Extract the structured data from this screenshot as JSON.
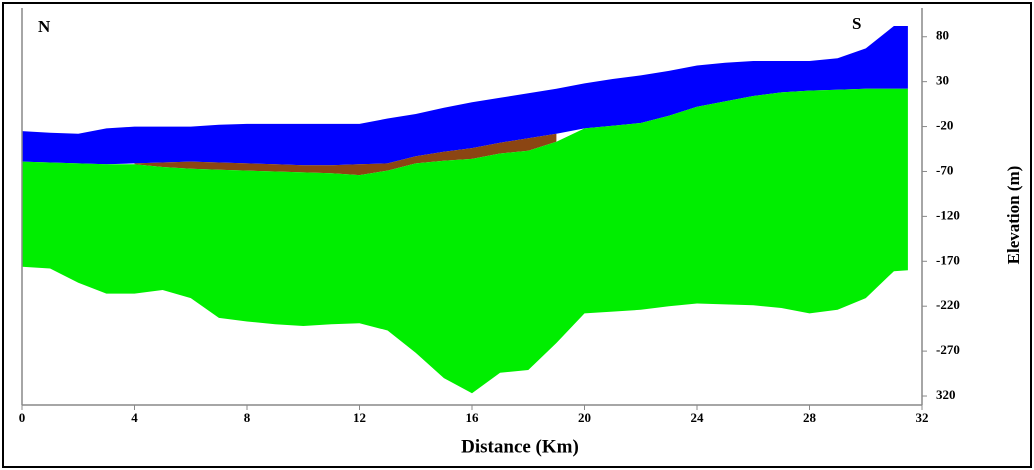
{
  "chart_data": {
    "type": "profile",
    "annotations": [
      "N",
      "S"
    ],
    "x_label": "Distance (Km)",
    "y_label": "Elevation (m)",
    "x": [
      0,
      1,
      2,
      3,
      4,
      5,
      6,
      7,
      8,
      9,
      10,
      11,
      12,
      13,
      14,
      15,
      16,
      17,
      18,
      19,
      20,
      21,
      22,
      23,
      24,
      25,
      26,
      27,
      28,
      29,
      30,
      31,
      31.5
    ],
    "layers": [
      {
        "color": "#0000ff",
        "top": [
          -25,
          -27,
          -28,
          -22,
          -20,
          -20,
          -20,
          -18,
          -17,
          -17,
          -17,
          -17,
          -17,
          -11,
          -6,
          1,
          7,
          12,
          17,
          22,
          28,
          33,
          37,
          42,
          48,
          51,
          53,
          53,
          53,
          56,
          67,
          92,
          92
        ],
        "bottom": [
          -59,
          -60,
          -61,
          -62,
          -61,
          -60,
          -59,
          -60,
          -61,
          -62,
          -63,
          -63,
          -62,
          -61,
          -53,
          -48,
          -44,
          -38,
          -33,
          -28,
          -22,
          -19,
          -16,
          -8,
          2,
          8,
          14,
          18,
          20,
          21,
          22,
          22,
          22
        ]
      },
      {
        "color": "#8b4513",
        "top": [
          null,
          null,
          null,
          null,
          -61,
          -60,
          -59,
          -60,
          -61,
          -62,
          -63,
          -63,
          -62,
          -61,
          -53,
          -48,
          -44,
          -38,
          -33,
          -28,
          null,
          null,
          null,
          null,
          null,
          null,
          null,
          null,
          null,
          null,
          null,
          null,
          null
        ],
        "bottom": [
          null,
          null,
          null,
          null,
          -62,
          -65,
          -67,
          -68,
          -69,
          -70,
          -71,
          -72,
          -74,
          -69,
          -61,
          -58,
          -56,
          -50,
          -47,
          -37,
          null,
          null,
          null,
          null,
          null,
          null,
          null,
          null,
          null,
          null,
          null,
          null,
          null
        ]
      },
      {
        "color": "#00ee00",
        "top": [
          -59,
          -60,
          -61,
          -62,
          -62,
          -65,
          -67,
          -68,
          -69,
          -70,
          -71,
          -72,
          -74,
          -69,
          -61,
          -58,
          -56,
          -50,
          -47,
          -37,
          -22,
          -19,
          -16,
          -8,
          2,
          8,
          14,
          18,
          20,
          21,
          22,
          22,
          22
        ],
        "bottom": [
          -176,
          -178,
          -194,
          -206,
          -206,
          -202,
          -211,
          -233,
          -237,
          -240,
          -242,
          -240,
          -239,
          -247,
          -272,
          -300,
          -317,
          -294,
          -291,
          -261,
          -228,
          -226,
          -224,
          -220,
          -217,
          -218,
          -219,
          -222,
          -228,
          -224,
          -211,
          -181,
          -180
        ]
      }
    ],
    "xlim": [
      0,
      32
    ],
    "xticks": [
      0,
      4,
      8,
      12,
      16,
      20,
      24,
      28,
      32
    ],
    "ylim": [
      -330,
      112
    ],
    "yticks": [
      80,
      30,
      -20,
      -70,
      -120,
      -170,
      -220,
      -270,
      {
        "value": -320,
        "label": "320"
      }
    ]
  }
}
